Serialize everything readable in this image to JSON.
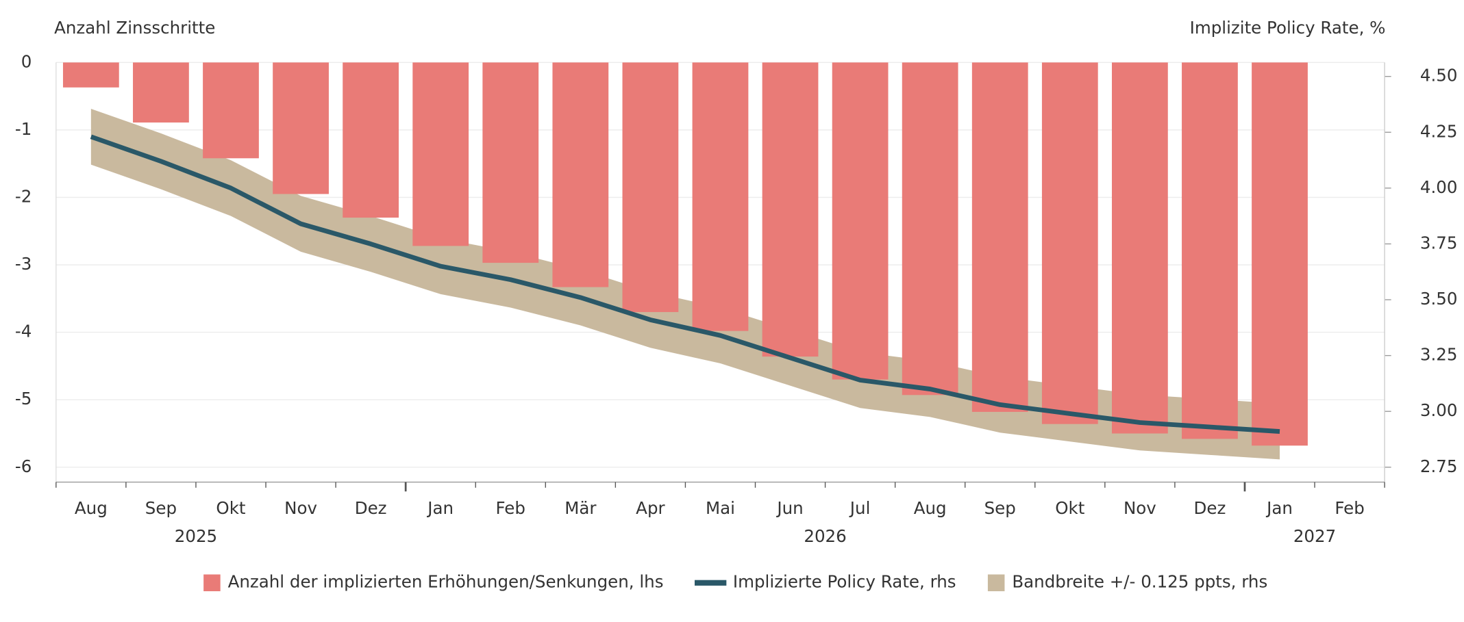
{
  "chart_data": {
    "type": "bar_line",
    "y_axis_label": "Anzahl Zinsschritte",
    "y2_axis_label": "Implizite Policy Rate, %",
    "categories": [
      "Aug",
      "Sep",
      "Okt",
      "Nov",
      "Dez",
      "Jan",
      "Feb",
      "Mär",
      "Apr",
      "Mai",
      "Jun",
      "Jul",
      "Aug",
      "Sep",
      "Okt",
      "Nov",
      "Dez",
      "Jan",
      "Feb"
    ],
    "years": [
      "2025",
      "2026",
      "2027"
    ],
    "ylim": [
      -6,
      0
    ],
    "yticks": [
      0,
      -1,
      -2,
      -3,
      -4,
      -5,
      -6
    ],
    "y2lim": [
      2.75,
      4.5625
    ],
    "y2ticks": [
      {
        "value": 4.5,
        "label": "4.50"
      },
      {
        "value": 4.25,
        "label": "4.25"
      },
      {
        "value": 4,
        "label": "4.00"
      },
      {
        "value": 3.75,
        "label": "3.75"
      },
      {
        "value": 3.5,
        "label": "3.50"
      },
      {
        "value": 3.25,
        "label": "3.25"
      },
      {
        "value": 3,
        "label": "3.00"
      },
      {
        "value": 2.75,
        "label": "2.75"
      }
    ],
    "grid": true,
    "series": [
      {
        "name": "Anzahl der implizierten Erhöhungen/Senkungen, lhs",
        "kind": "bar",
        "color": "#e97b77",
        "values": [
          -0.37,
          -0.89,
          -1.42,
          -1.95,
          -2.3,
          -2.72,
          -2.97,
          -3.33,
          -3.7,
          -3.98,
          -4.36,
          -4.7,
          -4.93,
          -5.18,
          -5.36,
          -5.5,
          -5.58,
          -5.68,
          null
        ]
      },
      {
        "name": "Implizierte Policy Rate, rhs",
        "kind": "line",
        "axis": "y2",
        "color": "#2a5868",
        "values": [
          4.23,
          4.12,
          4.0,
          3.84,
          3.75,
          3.65,
          3.59,
          3.51,
          3.41,
          3.34,
          3.24,
          3.14,
          3.1,
          3.03,
          2.99,
          2.95,
          2.93,
          2.91,
          null
        ]
      },
      {
        "name": "Bandbreite +/- 0.125 ppts, rhs",
        "kind": "band",
        "axis": "y2",
        "color": "#c9b99e",
        "halfwidth": 0.125
      }
    ]
  }
}
